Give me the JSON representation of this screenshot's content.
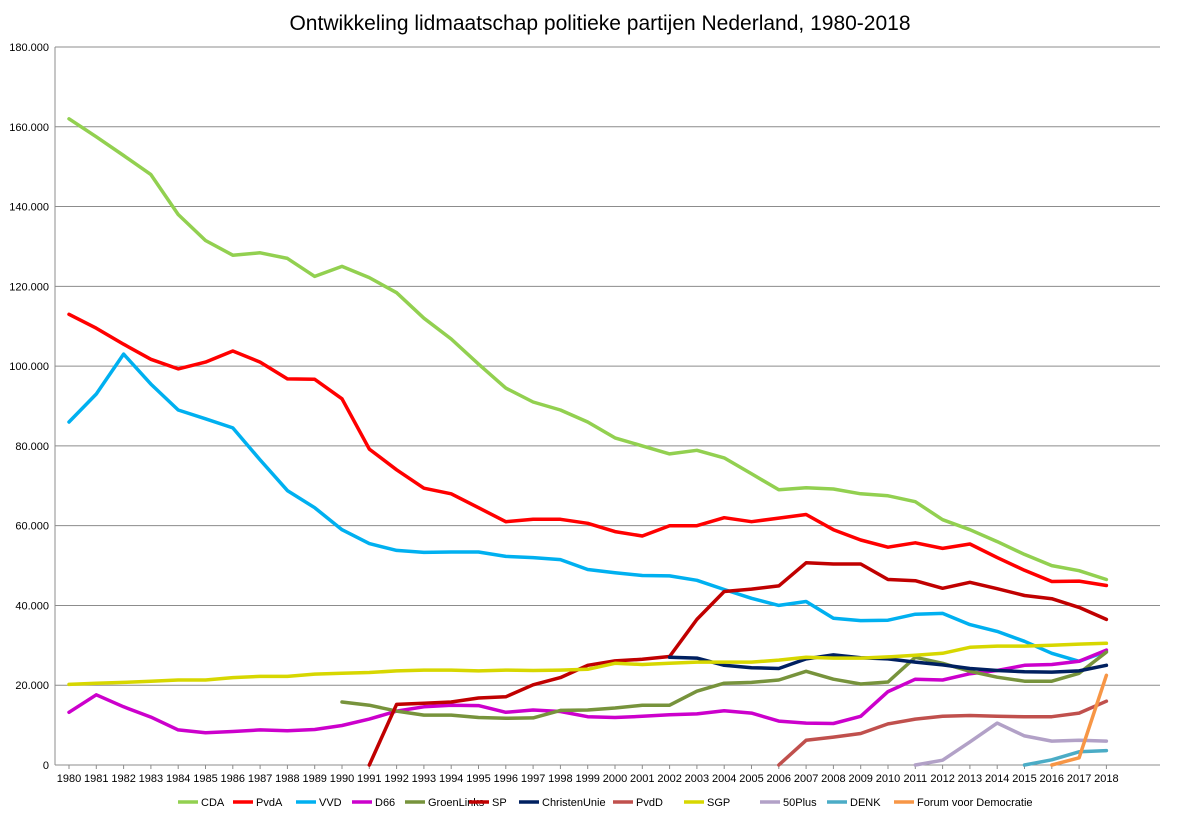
{
  "chart_data": {
    "type": "line",
    "title": "Ontwikkeling lidmaatschap politieke partijen Nederland, 1980-2018",
    "xlabel": "",
    "ylabel": "",
    "ylim": [
      0,
      180000
    ],
    "yticks": [
      0,
      20000,
      40000,
      60000,
      80000,
      100000,
      120000,
      140000,
      160000,
      180000
    ],
    "ytick_labels": [
      "0",
      "20.000",
      "40.000",
      "60.000",
      "80.000",
      "100.000",
      "120.000",
      "140.000",
      "160.000",
      "180.000"
    ],
    "grid": true,
    "legend_position": "bottom",
    "categories": [
      "1980",
      "1981",
      "1982",
      "1983",
      "1984",
      "1985",
      "1986",
      "1987",
      "1988",
      "1989",
      "1990",
      "1991",
      "1992",
      "1993",
      "1994",
      "1995",
      "1996",
      "1997",
      "1998",
      "1999",
      "2000",
      "2001",
      "2002",
      "2003",
      "2004",
      "2005",
      "2006",
      "2007",
      "2008",
      "2009",
      "2010",
      "2011",
      "2012",
      "2013",
      "2014",
      "2015",
      "2016",
      "2017",
      "2018"
    ],
    "series": [
      {
        "name": "CDA",
        "color": "#92d050",
        "values": [
          162000,
          157500,
          152800,
          148000,
          138000,
          131500,
          127800,
          128400,
          127000,
          122500,
          125000,
          122200,
          118400,
          112000,
          106800,
          100500,
          94500,
          91000,
          89000,
          86000,
          82000,
          80000,
          78000,
          78900,
          77000,
          73000,
          69000,
          69500,
          69200,
          68000,
          67500,
          66000,
          61500,
          59000,
          56000,
          52800,
          50000,
          48700,
          46500
        ]
      },
      {
        "name": "PvdA",
        "color": "#ff0000",
        "values": [
          113000,
          109500,
          105500,
          101700,
          99300,
          101000,
          103800,
          101000,
          96800,
          96700,
          91800,
          79200,
          74000,
          69400,
          68000,
          64500,
          61000,
          61600,
          61600,
          60600,
          58500,
          57400,
          60000,
          60000,
          62000,
          61000,
          61900,
          62800,
          59000,
          56400,
          54600,
          55700,
          54300,
          55400,
          52000,
          48800,
          46000,
          46100,
          45000
        ]
      },
      {
        "name": "VVD",
        "color": "#00b0f0",
        "values": [
          86000,
          93000,
          103000,
          95500,
          89000,
          86800,
          84500,
          76500,
          68800,
          64500,
          59000,
          55500,
          53800,
          53300,
          53400,
          53400,
          52300,
          52000,
          51500,
          49000,
          48200,
          47500,
          47400,
          46300,
          44000,
          41800,
          40000,
          41000,
          36800,
          36200,
          36300,
          37800,
          38000,
          35200,
          33500,
          31000,
          28000,
          26000,
          28500
        ]
      },
      {
        "name": "D66",
        "color": "#cc00cc",
        "values": [
          13200,
          17600,
          14600,
          12000,
          8800,
          8100,
          8400,
          8800,
          8600,
          8900,
          9900,
          11500,
          13500,
          14600,
          15000,
          14900,
          13200,
          13800,
          13400,
          12100,
          11900,
          12200,
          12600,
          12800,
          13600,
          13000,
          11000,
          10500,
          10400,
          12200,
          18400,
          21500,
          21300,
          22900,
          23700,
          25000,
          25200,
          26000,
          28800
        ]
      },
      {
        "name": "GroenLinks",
        "color": "#77933c",
        "values": [
          null,
          null,
          null,
          null,
          null,
          null,
          null,
          null,
          null,
          null,
          15800,
          15000,
          13500,
          12500,
          12500,
          11900,
          11700,
          11800,
          13700,
          13800,
          14300,
          15000,
          15000,
          18500,
          20500,
          20700,
          21300,
          23500,
          21500,
          20300,
          20800,
          27000,
          25500,
          23500,
          22000,
          21000,
          21000,
          23000,
          28300
        ]
      },
      {
        "name": "SP",
        "color": "#c00000",
        "values": [
          null,
          null,
          null,
          null,
          null,
          null,
          null,
          null,
          null,
          null,
          null,
          0,
          15200,
          15500,
          15800,
          16800,
          17100,
          20100,
          21900,
          25000,
          26100,
          26500,
          27200,
          36500,
          43500,
          44100,
          44900,
          50700,
          50400,
          50400,
          46500,
          46200,
          44300,
          45800,
          44200,
          42500,
          41700,
          39500,
          36500
        ]
      },
      {
        "name": "ChristenUnie",
        "color": "#002060",
        "values": [
          null,
          null,
          null,
          null,
          null,
          null,
          null,
          null,
          null,
          null,
          null,
          null,
          null,
          null,
          null,
          null,
          null,
          null,
          null,
          null,
          null,
          null,
          27000,
          26800,
          25000,
          24400,
          24200,
          26600,
          27600,
          26900,
          26600,
          25800,
          25100,
          24200,
          23700,
          23400,
          23300,
          23600,
          25000
        ]
      },
      {
        "name": "PvdD",
        "color": "#c0504d",
        "values": [
          null,
          null,
          null,
          null,
          null,
          null,
          null,
          null,
          null,
          null,
          null,
          null,
          null,
          null,
          null,
          null,
          null,
          null,
          null,
          null,
          null,
          null,
          null,
          null,
          null,
          null,
          0,
          6200,
          7000,
          7900,
          10300,
          11500,
          12200,
          12400,
          12200,
          12100,
          12100,
          13000,
          16000
        ]
      },
      {
        "name": "SGP",
        "color": "#d7d700",
        "values": [
          20200,
          20500,
          20700,
          21000,
          21300,
          21300,
          21900,
          22200,
          22200,
          22800,
          23000,
          23200,
          23600,
          23800,
          23800,
          23600,
          23800,
          23700,
          23800,
          24000,
          25500,
          25200,
          25500,
          25800,
          25800,
          25800,
          26300,
          27000,
          26800,
          26800,
          27100,
          27500,
          28000,
          29500,
          29800,
          29800,
          30000,
          30300,
          30500
        ]
      },
      {
        "name": "50Plus",
        "color": "#b2a1c7",
        "values": [
          null,
          null,
          null,
          null,
          null,
          null,
          null,
          null,
          null,
          null,
          null,
          null,
          null,
          null,
          null,
          null,
          null,
          null,
          null,
          null,
          null,
          null,
          null,
          null,
          null,
          null,
          null,
          null,
          null,
          null,
          null,
          0,
          1200,
          5800,
          10500,
          7300,
          6000,
          6200,
          6000
        ]
      },
      {
        "name": "DENK",
        "color": "#4bacc6",
        "values": [
          null,
          null,
          null,
          null,
          null,
          null,
          null,
          null,
          null,
          null,
          null,
          null,
          null,
          null,
          null,
          null,
          null,
          null,
          null,
          null,
          null,
          null,
          null,
          null,
          null,
          null,
          null,
          null,
          null,
          null,
          null,
          null,
          null,
          null,
          null,
          0,
          1300,
          3300,
          3600
        ]
      },
      {
        "name": "Forum voor Democratie",
        "color": "#f79646",
        "values": [
          null,
          null,
          null,
          null,
          null,
          null,
          null,
          null,
          null,
          null,
          null,
          null,
          null,
          null,
          null,
          null,
          null,
          null,
          null,
          null,
          null,
          null,
          null,
          null,
          null,
          null,
          null,
          null,
          null,
          null,
          null,
          null,
          null,
          null,
          null,
          null,
          0,
          1800,
          22500
        ]
      }
    ]
  }
}
